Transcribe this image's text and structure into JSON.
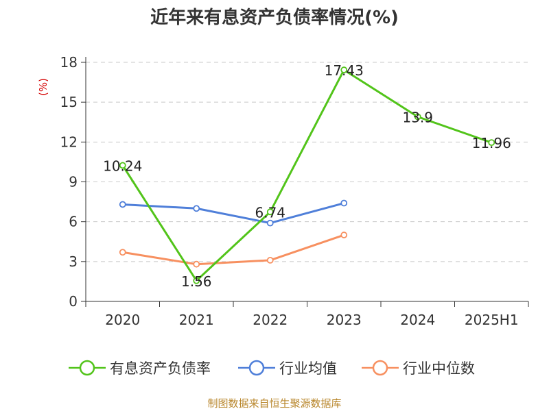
{
  "chart_data": {
    "type": "line",
    "title": "近年来有息资产负债率情况(%)",
    "ylabel": "(%)",
    "categories": [
      "2020",
      "2021",
      "2022",
      "2023",
      "2024",
      "2025H1"
    ],
    "yticks": [
      0,
      3,
      6,
      9,
      12,
      15,
      18
    ],
    "ylim": [
      0,
      18
    ],
    "grid": true,
    "legend_position": "bottom",
    "series": [
      {
        "name": "有息资产负债率",
        "color": "#52c41a",
        "values": [
          10.24,
          1.56,
          6.74,
          17.43,
          13.9,
          11.96
        ],
        "labels": [
          "10.24",
          "1.56",
          "6.74",
          "17.43",
          "13.9",
          "11.96"
        ]
      },
      {
        "name": "行业均值",
        "color": "#4f7fd9",
        "values": [
          7.3,
          7.0,
          5.9,
          7.4,
          null,
          null
        ]
      },
      {
        "name": "行业中位数",
        "color": "#f79060",
        "values": [
          3.7,
          2.8,
          3.1,
          5.0,
          null,
          null
        ]
      }
    ],
    "source": "制图数据来自恒生聚源数据库"
  }
}
